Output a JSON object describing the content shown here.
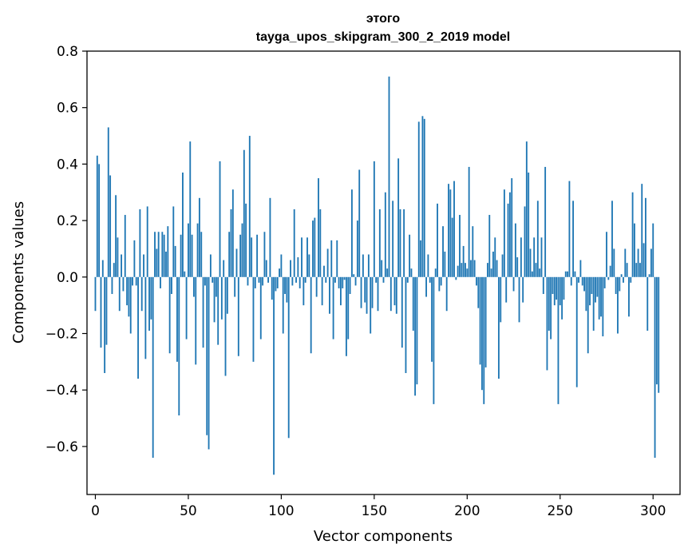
{
  "chart_data": {
    "type": "bar",
    "title_line1": "этого",
    "title_line2": "tayga_upos_skipgram_300_2_2019 model",
    "xlabel": "Vector components",
    "ylabel": "Components values",
    "xlim": [
      -4.5,
      314.5
    ],
    "ylim": [
      -0.77,
      0.8
    ],
    "x_ticks": [
      0,
      50,
      100,
      150,
      200,
      250,
      300
    ],
    "x_tick_labels": [
      "0",
      "50",
      "100",
      "150",
      "200",
      "250",
      "300"
    ],
    "y_ticks": [
      -0.6,
      -0.4,
      -0.2,
      0.0,
      0.2,
      0.4,
      0.6,
      0.8
    ],
    "y_tick_labels": [
      "−0.6",
      "−0.4",
      "−0.2",
      "0.0",
      "0.2",
      "0.4",
      "0.6",
      "0.8"
    ],
    "bar_color": "#1f77b4",
    "values": [
      -0.12,
      0.43,
      0.4,
      -0.25,
      0.06,
      -0.34,
      -0.24,
      0.53,
      0.36,
      -0.06,
      0.05,
      0.29,
      0.14,
      -0.12,
      0.08,
      -0.05,
      0.22,
      -0.1,
      -0.14,
      -0.2,
      -0.03,
      0.13,
      -0.03,
      -0.36,
      0.24,
      -0.12,
      0.08,
      -0.29,
      0.25,
      -0.19,
      -0.15,
      -0.64,
      0.16,
      0.1,
      0.16,
      -0.04,
      0.16,
      0.15,
      0.09,
      0.18,
      -0.27,
      -0.06,
      0.25,
      0.11,
      -0.3,
      -0.49,
      0.15,
      0.37,
      0.02,
      -0.22,
      0.19,
      0.48,
      0.15,
      -0.07,
      -0.31,
      0.19,
      0.28,
      0.16,
      -0.25,
      -0.03,
      -0.56,
      -0.61,
      0.08,
      -0.02,
      -0.16,
      -0.07,
      -0.24,
      0.41,
      -0.15,
      0.06,
      -0.35,
      -0.13,
      0.16,
      0.24,
      0.31,
      -0.07,
      0.1,
      -0.28,
      0.15,
      0.19,
      0.45,
      0.26,
      -0.03,
      0.5,
      0.14,
      -0.3,
      -0.04,
      0.15,
      -0.02,
      -0.22,
      -0.03,
      0.16,
      0.06,
      -0.02,
      0.28,
      -0.08,
      -0.7,
      -0.05,
      -0.04,
      0.03,
      0.08,
      -0.2,
      -0.06,
      -0.09,
      -0.57,
      0.06,
      -0.03,
      0.24,
      -0.02,
      0.07,
      -0.04,
      0.14,
      -0.1,
      -0.02,
      0.14,
      0.08,
      -0.27,
      0.2,
      0.21,
      -0.07,
      0.35,
      0.24,
      -0.1,
      0.04,
      -0.02,
      0.1,
      -0.13,
      0.13,
      -0.22,
      -0.02,
      0.13,
      -0.04,
      -0.1,
      -0.04,
      -0.01,
      -0.28,
      -0.22,
      -0.06,
      0.31,
      0.01,
      -0.03,
      0.2,
      0.38,
      -0.11,
      0.08,
      -0.09,
      -0.13,
      0.08,
      -0.2,
      -0.11,
      0.41,
      -0.02,
      -0.12,
      0.24,
      0.06,
      -0.02,
      0.3,
      0.03,
      0.71,
      -0.12,
      0.27,
      -0.1,
      -0.13,
      0.42,
      0.24,
      -0.25,
      0.24,
      -0.34,
      -0.02,
      0.15,
      0.03,
      -0.19,
      -0.42,
      -0.38,
      0.55,
      0.13,
      0.57,
      0.56,
      -0.07,
      0.08,
      -0.02,
      -0.3,
      -0.45,
      0.03,
      0.26,
      -0.05,
      -0.03,
      0.18,
      0.09,
      -0.12,
      0.33,
      0.31,
      0.21,
      0.34,
      -0.01,
      0.04,
      0.22,
      0.05,
      0.11,
      0.05,
      0.03,
      0.39,
      0.06,
      0.18,
      0.06,
      -0.03,
      -0.11,
      -0.31,
      -0.4,
      -0.45,
      -0.32,
      0.05,
      0.22,
      0.03,
      0.09,
      0.14,
      0.06,
      -0.36,
      -0.16,
      0.08,
      0.31,
      -0.09,
      0.26,
      0.3,
      0.35,
      -0.05,
      0.19,
      0.07,
      -0.16,
      0.14,
      -0.09,
      0.25,
      0.48,
      0.37,
      0.1,
      0.02,
      0.14,
      0.05,
      0.27,
      0.03,
      0.14,
      -0.06,
      0.39,
      -0.33,
      -0.19,
      -0.22,
      -0.06,
      -0.1,
      -0.08,
      -0.45,
      -0.1,
      -0.15,
      -0.08,
      0.02,
      0.02,
      0.34,
      -0.03,
      0.27,
      0.02,
      -0.39,
      -0.02,
      0.06,
      -0.03,
      -0.05,
      -0.12,
      -0.27,
      -0.1,
      -0.06,
      -0.19,
      -0.09,
      -0.07,
      -0.15,
      -0.14,
      -0.21,
      -0.04,
      0.16,
      -0.01,
      0.04,
      0.27,
      0.1,
      -0.06,
      -0.2,
      -0.05,
      0.01,
      -0.02,
      0.1,
      0.05,
      -0.14,
      -0.02,
      0.3,
      0.19,
      0.05,
      0.1,
      0.05,
      0.33,
      0.12,
      0.28,
      -0.19,
      0.01,
      0.1,
      0.19,
      -0.64,
      -0.38,
      -0.41
    ]
  }
}
